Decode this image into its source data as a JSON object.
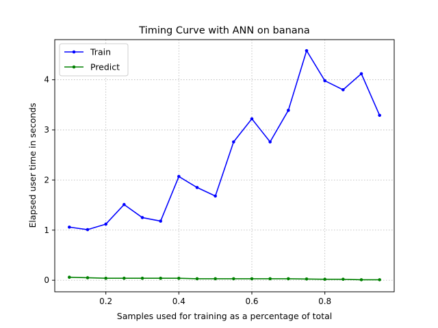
{
  "chart_data": {
    "type": "line",
    "title": "Timing Curve with ANN on banana",
    "xlabel": "Samples used for training as a percentage of total",
    "ylabel": "Elapsed user time in seconds",
    "xlim": [
      0.06,
      0.99
    ],
    "ylim": [
      -0.23,
      4.8
    ],
    "xticks": [
      0.2,
      0.4,
      0.6,
      0.8
    ],
    "xtick_labels": [
      "0.2",
      "0.4",
      "0.6",
      "0.8"
    ],
    "yticks": [
      0,
      1,
      2,
      3,
      4
    ],
    "ytick_labels": [
      "0",
      "1",
      "2",
      "3",
      "4"
    ],
    "grid": true,
    "legend_position": "top-left",
    "x": [
      0.1,
      0.15,
      0.2,
      0.25,
      0.3,
      0.35,
      0.4,
      0.45,
      0.5,
      0.55,
      0.6,
      0.65,
      0.7,
      0.75,
      0.8,
      0.85,
      0.9,
      0.95
    ],
    "series": [
      {
        "name": "Train",
        "color": "#0000ff",
        "values": [
          1.06,
          1.01,
          1.12,
          1.51,
          1.25,
          1.18,
          2.07,
          1.85,
          1.68,
          2.76,
          3.22,
          2.76,
          3.39,
          4.58,
          3.98,
          3.8,
          4.12,
          3.29
        ]
      },
      {
        "name": "Predict",
        "color": "#008000",
        "values": [
          0.06,
          0.05,
          0.04,
          0.04,
          0.04,
          0.04,
          0.04,
          0.03,
          0.03,
          0.03,
          0.03,
          0.03,
          0.03,
          0.025,
          0.02,
          0.02,
          0.01,
          0.01
        ]
      }
    ]
  }
}
